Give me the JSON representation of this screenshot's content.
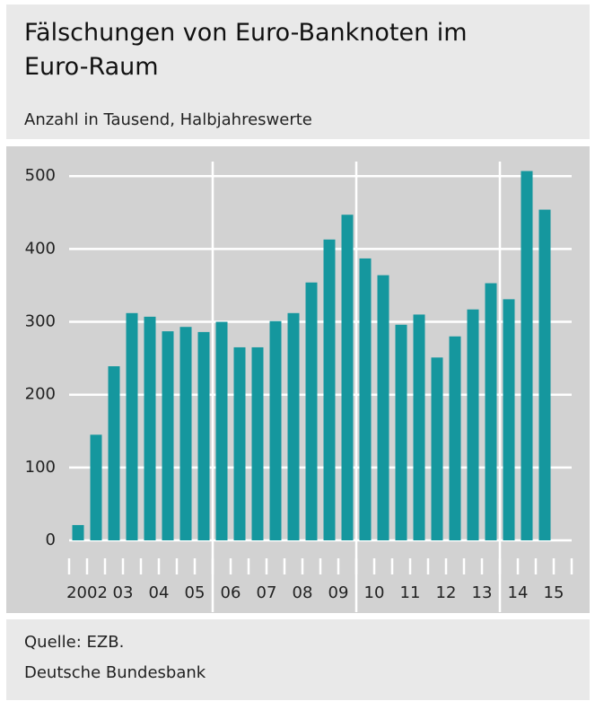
{
  "chart_data": {
    "type": "bar",
    "title": "Fälschungen von Euro-Banknoten im Euro-Raum",
    "subtitle": "Anzahl in Tausend, Halbjahreswerte",
    "categories": [
      "2002",
      null,
      "03",
      null,
      "04",
      null,
      "05",
      null,
      "06",
      null,
      "07",
      null,
      "08",
      null,
      "09",
      null,
      "10",
      null,
      "11",
      null,
      "12",
      null,
      "13",
      null,
      "14",
      null,
      "15"
    ],
    "values": [
      21,
      145,
      239,
      312,
      307,
      287,
      293,
      286,
      300,
      265,
      265,
      301,
      312,
      354,
      413,
      447,
      387,
      364,
      296,
      310,
      251,
      280,
      317,
      353,
      331,
      507,
      454
    ],
    "color": "#15979e",
    "ylim": [
      0,
      520
    ],
    "yticks": [
      0,
      100,
      200,
      300,
      400,
      500
    ],
    "grid": true,
    "source": "Quelle: EZB.",
    "publisher": "Deutsche Bundesbank"
  }
}
